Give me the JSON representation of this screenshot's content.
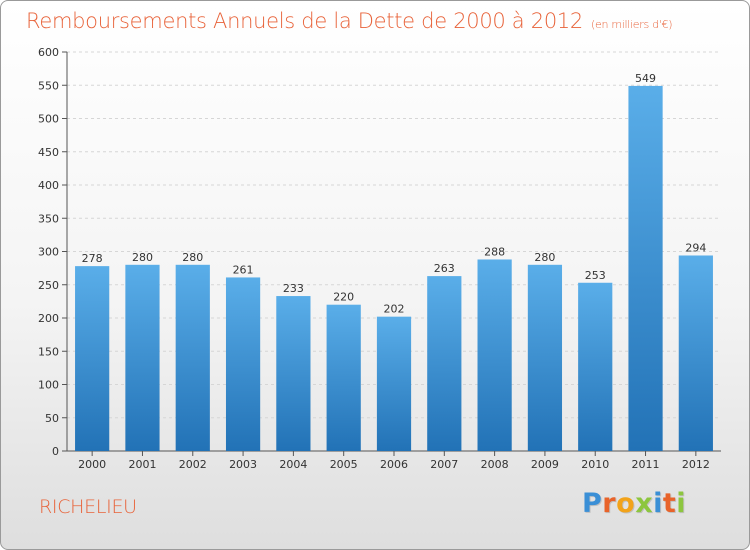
{
  "header": {
    "title": "Remboursements Annuels de la Dette de 2000 à 2012",
    "unit": "(en milliers d'€)"
  },
  "footer": {
    "commune": "RICHELIEU",
    "logo": "Proxiti",
    "logo_colors": [
      "#3a8fd6",
      "#e8632a",
      "#f2a31a",
      "#8dc63f",
      "#3a8fd6",
      "#e8632a",
      "#8dc63f"
    ]
  },
  "chart_data": {
    "type": "bar",
    "title": "Remboursements Annuels de la Dette de 2000 à 2012",
    "categories": [
      "2000",
      "2001",
      "2002",
      "2003",
      "2004",
      "2005",
      "2006",
      "2007",
      "2008",
      "2009",
      "2010",
      "2011",
      "2012"
    ],
    "values": [
      278,
      280,
      280,
      261,
      233,
      220,
      202,
      263,
      288,
      280,
      253,
      549,
      294
    ],
    "ylim": [
      0,
      600
    ],
    "yticks": [
      0,
      50,
      100,
      150,
      200,
      250,
      300,
      350,
      400,
      450,
      500,
      550,
      600
    ],
    "grid": true,
    "bar_color_top": "#5aaee9",
    "bar_color_bottom": "#2272b6"
  }
}
